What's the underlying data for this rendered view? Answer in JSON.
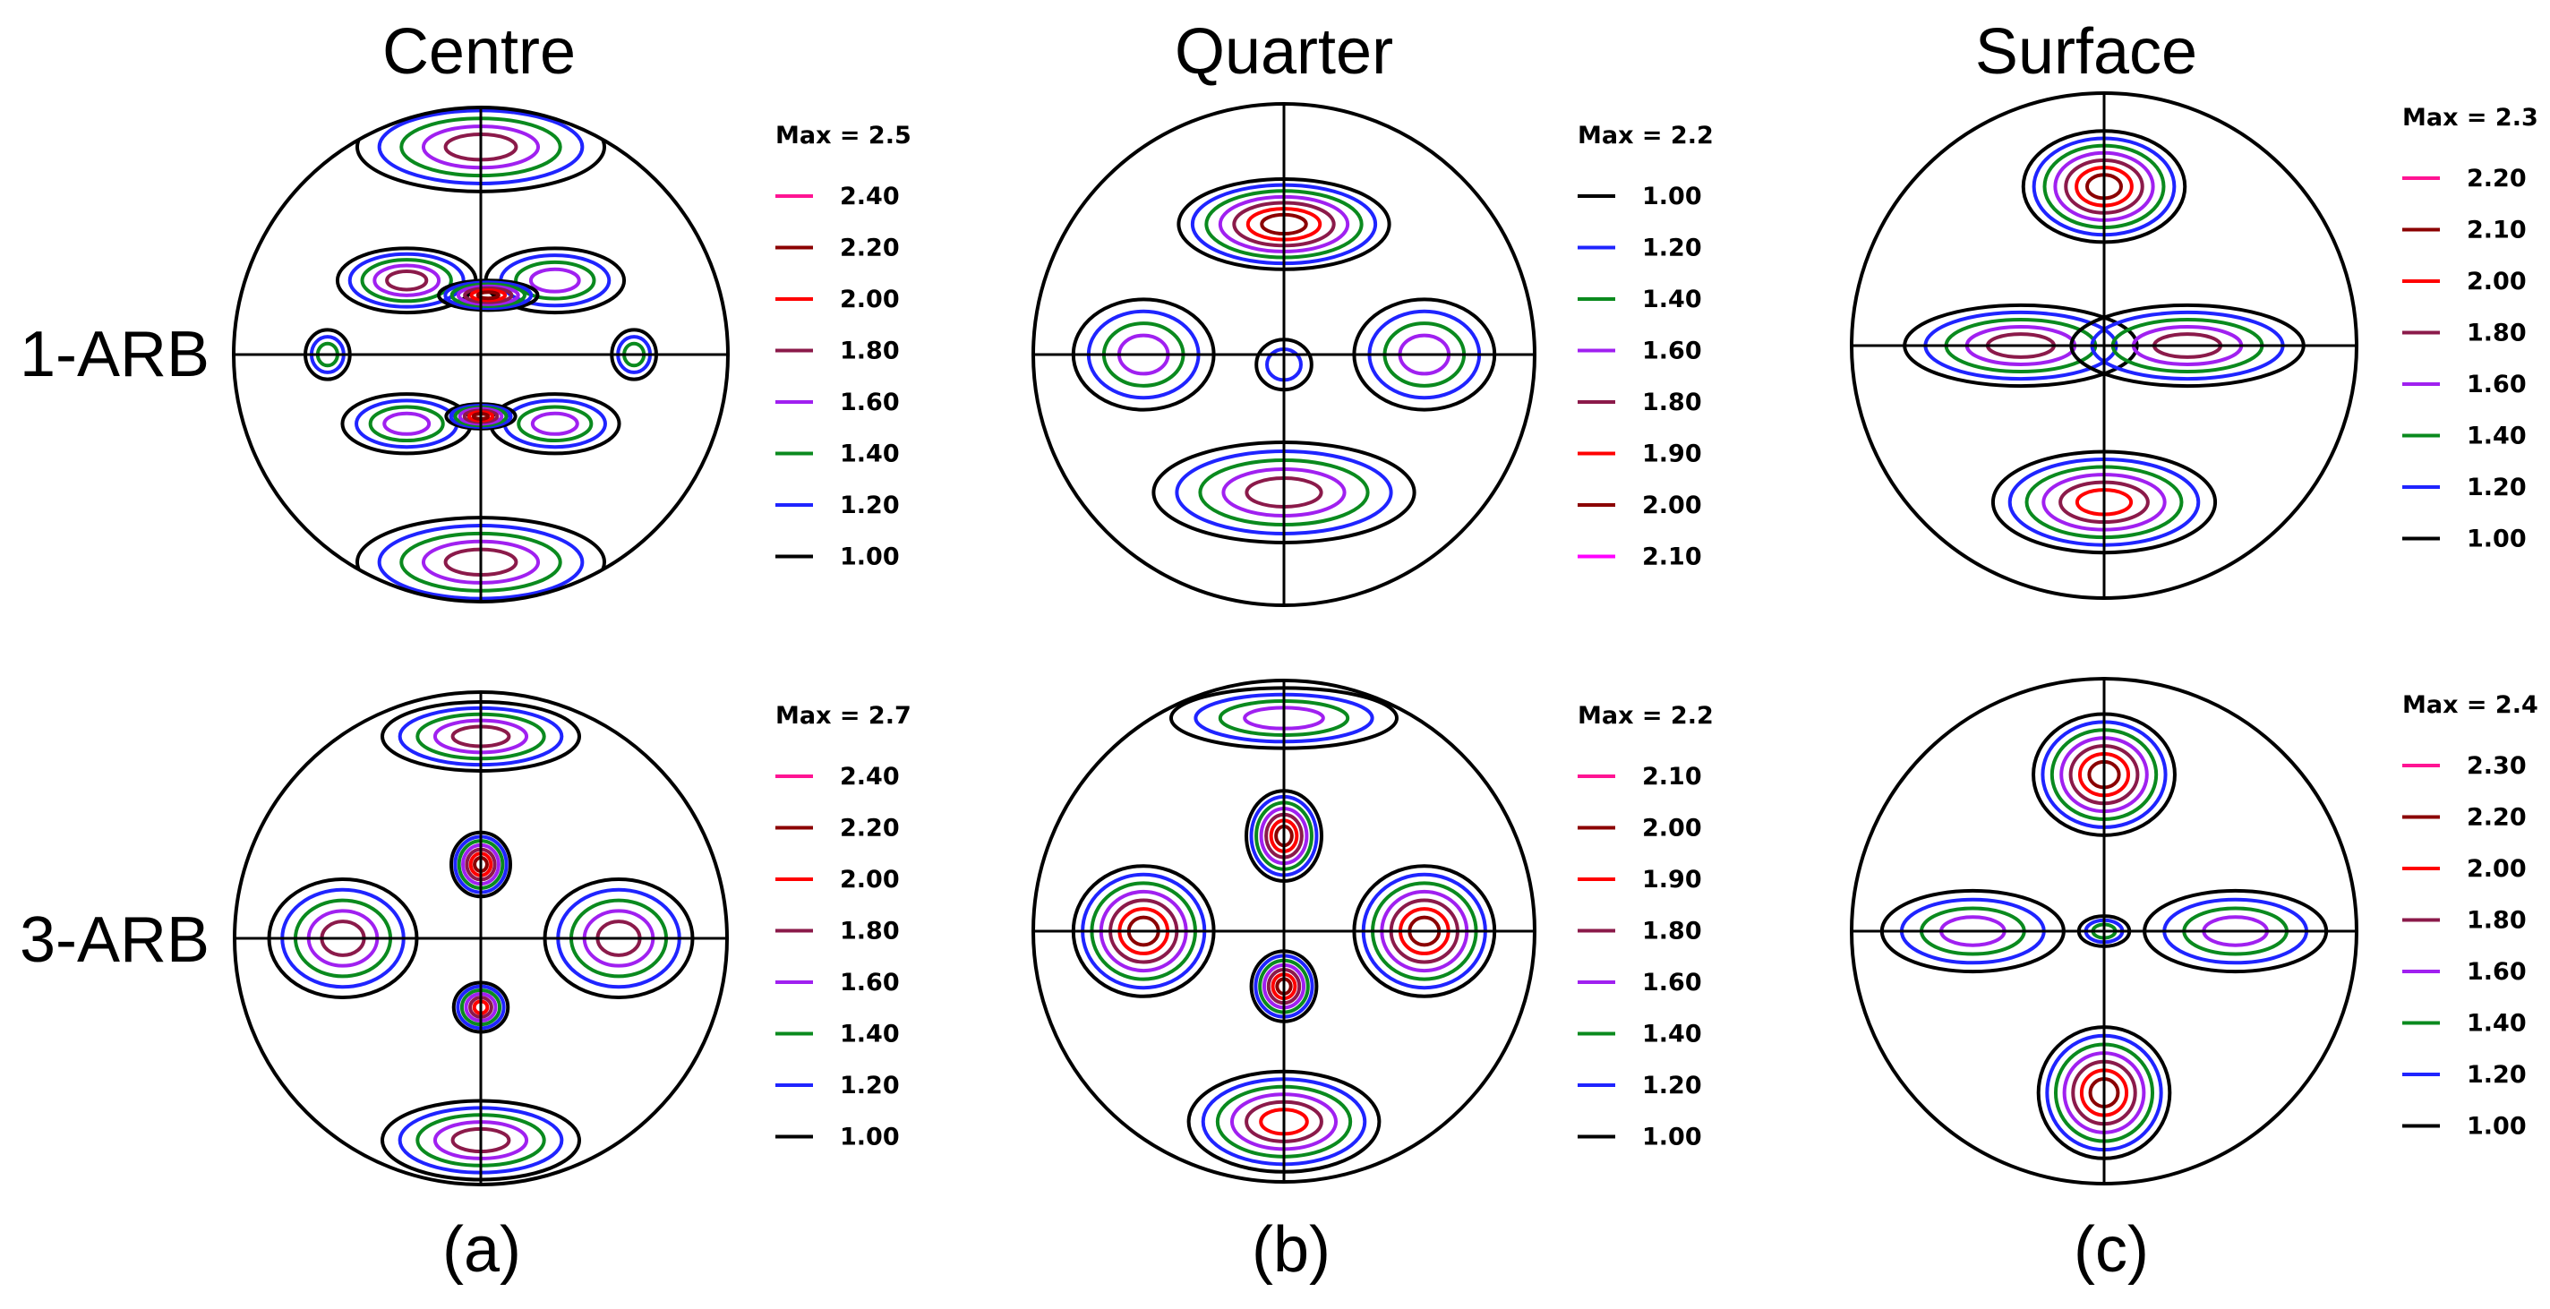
{
  "figure": {
    "column_titles": [
      "Centre",
      "Quarter",
      "Surface"
    ],
    "row_labels": [
      "1-ARB",
      "3-ARB"
    ],
    "panel_labels": [
      "(a)",
      "(b)",
      "(c)"
    ]
  },
  "colors": {
    "black": "#000000",
    "blue": "#1f24ff",
    "green": "#0a8a1e",
    "violet": "#a020f0",
    "maroon": "#8b1a4a",
    "red": "#ff0000",
    "darkred": "#8b0000",
    "pink": "#ff1493",
    "magenta": "#ff00ff"
  },
  "chart_data": [
    {
      "type": "contour-pole-figure",
      "position": "Centre / 1-ARB",
      "max_label": "Max = 2.5",
      "legend": [
        {
          "label": "2.40",
          "color": "pink"
        },
        {
          "label": "2.20",
          "color": "darkred"
        },
        {
          "label": "2.00",
          "color": "red"
        },
        {
          "label": "1.80",
          "color": "maroon"
        },
        {
          "label": "1.60",
          "color": "violet"
        },
        {
          "label": "1.40",
          "color": "green"
        },
        {
          "label": "1.20",
          "color": "blue"
        },
        {
          "label": "1.00",
          "color": "black"
        }
      ]
    },
    {
      "type": "contour-pole-figure",
      "position": "Quarter / 1-ARB",
      "max_label": "Max = 2.2",
      "legend": [
        {
          "label": "1.00",
          "color": "black"
        },
        {
          "label": "1.20",
          "color": "blue"
        },
        {
          "label": "1.40",
          "color": "green"
        },
        {
          "label": "1.60",
          "color": "violet"
        },
        {
          "label": "1.80",
          "color": "maroon"
        },
        {
          "label": "1.90",
          "color": "red"
        },
        {
          "label": "2.00",
          "color": "darkred"
        },
        {
          "label": "2.10",
          "color": "magenta"
        }
      ]
    },
    {
      "type": "contour-pole-figure",
      "position": "Surface / 1-ARB",
      "max_label": "Max = 2.3",
      "legend": [
        {
          "label": "2.20",
          "color": "pink"
        },
        {
          "label": "2.10",
          "color": "darkred"
        },
        {
          "label": "2.00",
          "color": "red"
        },
        {
          "label": "1.80",
          "color": "maroon"
        },
        {
          "label": "1.60",
          "color": "violet"
        },
        {
          "label": "1.40",
          "color": "green"
        },
        {
          "label": "1.20",
          "color": "blue"
        },
        {
          "label": "1.00",
          "color": "black"
        }
      ]
    },
    {
      "type": "contour-pole-figure",
      "position": "Centre / 3-ARB",
      "max_label": "Max = 2.7",
      "legend": [
        {
          "label": "2.40",
          "color": "pink"
        },
        {
          "label": "2.20",
          "color": "darkred"
        },
        {
          "label": "2.00",
          "color": "red"
        },
        {
          "label": "1.80",
          "color": "maroon"
        },
        {
          "label": "1.60",
          "color": "violet"
        },
        {
          "label": "1.40",
          "color": "green"
        },
        {
          "label": "1.20",
          "color": "blue"
        },
        {
          "label": "1.00",
          "color": "black"
        }
      ]
    },
    {
      "type": "contour-pole-figure",
      "position": "Quarter / 3-ARB",
      "max_label": "Max = 2.2",
      "legend": [
        {
          "label": "2.10",
          "color": "pink"
        },
        {
          "label": "2.00",
          "color": "darkred"
        },
        {
          "label": "1.90",
          "color": "red"
        },
        {
          "label": "1.80",
          "color": "maroon"
        },
        {
          "label": "1.60",
          "color": "violet"
        },
        {
          "label": "1.40",
          "color": "green"
        },
        {
          "label": "1.20",
          "color": "blue"
        },
        {
          "label": "1.00",
          "color": "black"
        }
      ]
    },
    {
      "type": "contour-pole-figure",
      "position": "Surface / 3-ARB",
      "max_label": "Max = 2.4",
      "legend": [
        {
          "label": "2.30",
          "color": "pink"
        },
        {
          "label": "2.20",
          "color": "darkred"
        },
        {
          "label": "2.00",
          "color": "red"
        },
        {
          "label": "1.80",
          "color": "maroon"
        },
        {
          "label": "1.60",
          "color": "violet"
        },
        {
          "label": "1.40",
          "color": "green"
        },
        {
          "label": "1.20",
          "color": "blue"
        },
        {
          "label": "1.00",
          "color": "black"
        }
      ]
    }
  ]
}
